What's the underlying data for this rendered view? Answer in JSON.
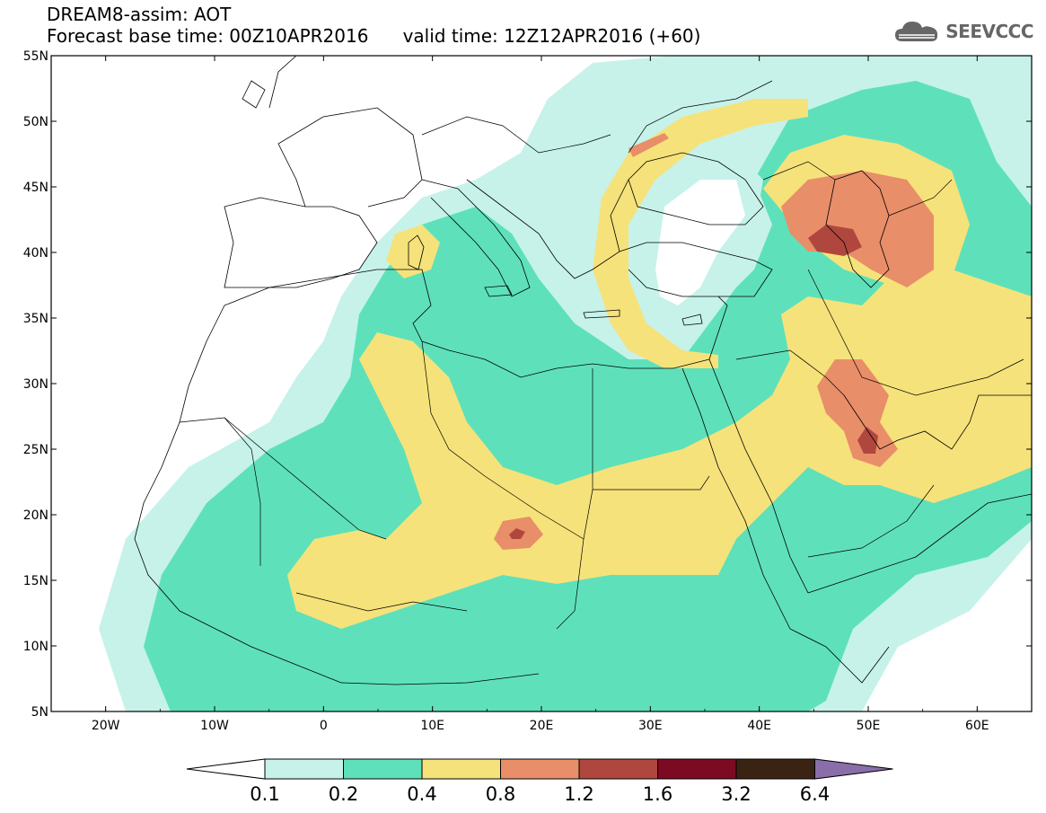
{
  "header": {
    "title": "DREAM8-assim: AOT",
    "base_time_label": "Forecast base time: 00Z10APR2016",
    "valid_time_label": "valid time: 12Z12APR2016 (+60)"
  },
  "logo": {
    "text": "SEEVCCC",
    "icon": "cloud-icon",
    "color": "#666666"
  },
  "map": {
    "lon_range": [
      -25,
      65
    ],
    "lat_range": [
      5,
      55
    ],
    "lon_ticks": [
      {
        "value": -20,
        "label": "20W"
      },
      {
        "value": -10,
        "label": "10W"
      },
      {
        "value": 0,
        "label": "0"
      },
      {
        "value": 10,
        "label": "10E"
      },
      {
        "value": 20,
        "label": "20E"
      },
      {
        "value": 30,
        "label": "30E"
      },
      {
        "value": 40,
        "label": "40E"
      },
      {
        "value": 50,
        "label": "50E"
      },
      {
        "value": 60,
        "label": "60E"
      }
    ],
    "lat_ticks": [
      {
        "value": 55,
        "label": "55N"
      },
      {
        "value": 50,
        "label": "50N"
      },
      {
        "value": 45,
        "label": "45N"
      },
      {
        "value": 40,
        "label": "40N"
      },
      {
        "value": 35,
        "label": "35N"
      },
      {
        "value": 30,
        "label": "30N"
      },
      {
        "value": 25,
        "label": "25N"
      },
      {
        "value": 20,
        "label": "20N"
      },
      {
        "value": 15,
        "label": "15N"
      },
      {
        "value": 10,
        "label": "10N"
      },
      {
        "value": 5,
        "label": "5N"
      }
    ]
  },
  "colorbar": {
    "labels": [
      "0.1",
      "0.2",
      "0.4",
      "0.8",
      "1.2",
      "1.6",
      "3.2",
      "6.4"
    ],
    "colors": [
      "#c6f2ea",
      "#5ee1ba",
      "#f6e27a",
      "#e88e69",
      "#b0473f",
      "#7d0a23",
      "#3b2314",
      "#8a6eaa"
    ],
    "low_color": "#ffffff"
  }
}
